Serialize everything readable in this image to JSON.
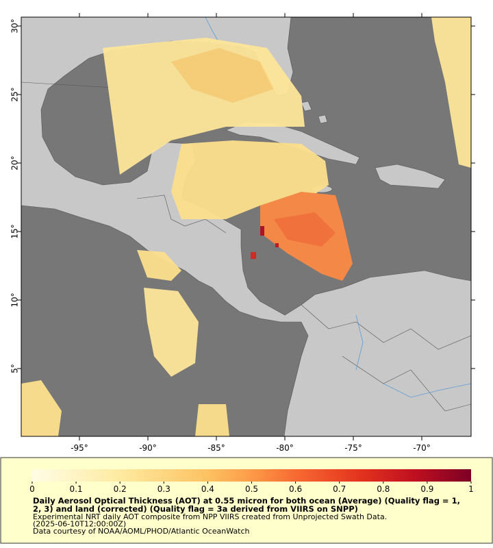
{
  "map": {
    "lon_ticks": [
      {
        "value": -95,
        "label": "-95°"
      },
      {
        "value": -90,
        "label": "-90°"
      },
      {
        "value": -85,
        "label": "-85°"
      },
      {
        "value": -80,
        "label": "-80°"
      },
      {
        "value": -75,
        "label": "-75°"
      },
      {
        "value": -70,
        "label": "-70°"
      }
    ],
    "lat_ticks": [
      {
        "value": 30,
        "label": "30°"
      },
      {
        "value": 25,
        "label": "25°"
      },
      {
        "value": 20,
        "label": "20°"
      },
      {
        "value": 15,
        "label": "15°"
      },
      {
        "value": 10,
        "label": "10°"
      },
      {
        "value": 5,
        "label": "5°"
      }
    ],
    "colorbar": {
      "range": [
        0,
        1
      ],
      "ticks": [
        0,
        0.1,
        0.2,
        0.3,
        0.4,
        0.5,
        0.6,
        0.7,
        0.8,
        0.9,
        1
      ],
      "stops": [
        {
          "offset": 0,
          "color": "#fffde6"
        },
        {
          "offset": 0.2,
          "color": "#feeaa0"
        },
        {
          "offset": 0.4,
          "color": "#fdc262"
        },
        {
          "offset": 0.5,
          "color": "#fd9a48"
        },
        {
          "offset": 0.6,
          "color": "#f86a32"
        },
        {
          "offset": 0.75,
          "color": "#e2321e"
        },
        {
          "offset": 0.87,
          "color": "#c01020"
        },
        {
          "offset": 1,
          "color": "#7c0024"
        }
      ]
    },
    "caption": {
      "title_lines": [
        "Daily Aerosol Optical Thickness (AOT) at 0.55 micron for both ocean (Average) (Quality flag = 1,",
        "2, 3) and land (corrected) (Quality flag = 3a derived from VIIRS on SNPP)"
      ],
      "lines": [
        "Experimental NRT daily AOT composite from NPP VIIRS created from Unprojected Swath Data.",
        "(2025-06-10T12:00:00Z)",
        "Data courtesy of NOAA/AOML/PHOD/Atlantic OceanWatch"
      ]
    }
  }
}
